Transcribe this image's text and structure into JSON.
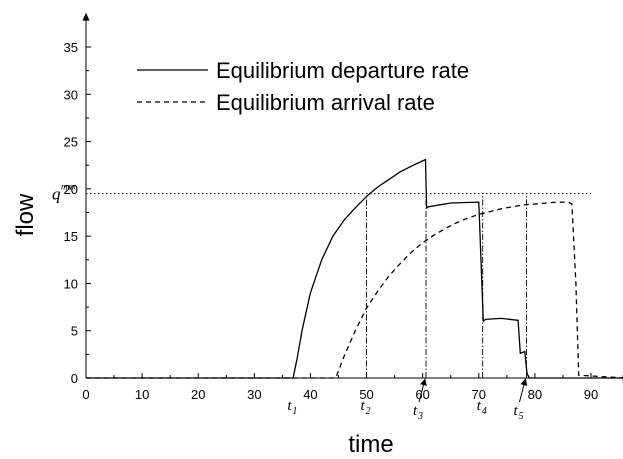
{
  "chart_data": {
    "type": "line",
    "xlabel": "time",
    "ylabel": "flow",
    "xlim": [
      0,
      96
    ],
    "ylim": [
      0,
      38
    ],
    "x_ticks": [
      0,
      10,
      20,
      30,
      40,
      50,
      60,
      70,
      80,
      90
    ],
    "y_ticks": [
      0,
      5,
      10,
      15,
      20,
      25,
      30,
      35
    ],
    "series": [
      {
        "name": "Equilibrium departure rate",
        "style": "solid",
        "color": "#000000",
        "x": [
          0,
          36.9,
          37.6,
          38.5,
          40,
          42,
          44,
          46,
          48,
          50,
          52,
          54,
          56,
          58,
          60.5,
          60.7,
          61,
          65,
          70,
          70.8,
          71.2,
          74,
          77,
          77.4,
          78.2,
          78.6,
          79,
          96
        ],
        "y": [
          0,
          0,
          2.0,
          5.0,
          9.0,
          12.5,
          15.0,
          16.7,
          18.0,
          19.2,
          20.2,
          21.0,
          21.8,
          22.4,
          23.1,
          18.0,
          18.1,
          18.5,
          18.6,
          6.0,
          6.2,
          6.3,
          6.1,
          2.6,
          2.8,
          0.5,
          0,
          0
        ]
      },
      {
        "name": "Equilibrium arrival rate",
        "style": "dashed",
        "color": "#000000",
        "x": [
          0,
          44.5,
          46,
          48,
          50,
          52,
          54,
          56,
          58,
          60,
          62,
          64,
          66,
          68,
          70,
          72,
          74,
          76,
          78,
          80,
          82,
          84,
          86,
          86.6,
          87.3,
          87.8,
          96
        ],
        "y": [
          0,
          0,
          2.3,
          5.0,
          7.4,
          9.2,
          10.8,
          12.1,
          13.3,
          14.3,
          15.1,
          15.8,
          16.4,
          16.9,
          17.3,
          17.6,
          17.9,
          18.1,
          18.3,
          18.4,
          18.5,
          18.6,
          18.6,
          18.4,
          10.0,
          0.3,
          0
        ]
      }
    ],
    "reference_lines": [
      {
        "orientation": "horizontal",
        "value": 19.5,
        "label_main": "q",
        "label_sup": "max",
        "style": "dotted"
      }
    ],
    "markers": [
      {
        "x": 37.5,
        "main": "t",
        "sub": "1",
        "arrow": false,
        "vline": false
      },
      {
        "x": 50,
        "main": "t",
        "sub": "2",
        "arrow": false,
        "vline": true,
        "vtop": 19.5
      },
      {
        "x": 60.6,
        "main": "t",
        "sub": "3",
        "arrow": true,
        "vline": true,
        "vtop": 19.5
      },
      {
        "x": 70.7,
        "main": "t",
        "sub": "4",
        "arrow": false,
        "vline": true,
        "vtop": 19.5
      },
      {
        "x": 78.5,
        "main": "t",
        "sub": "5",
        "arrow": true,
        "vline": true,
        "vtop": 19.5
      }
    ],
    "legend": {
      "placement": "top-center",
      "entries": [
        "Equilibrium departure rate",
        "Equilibrium arrival rate"
      ]
    },
    "grid": false
  }
}
